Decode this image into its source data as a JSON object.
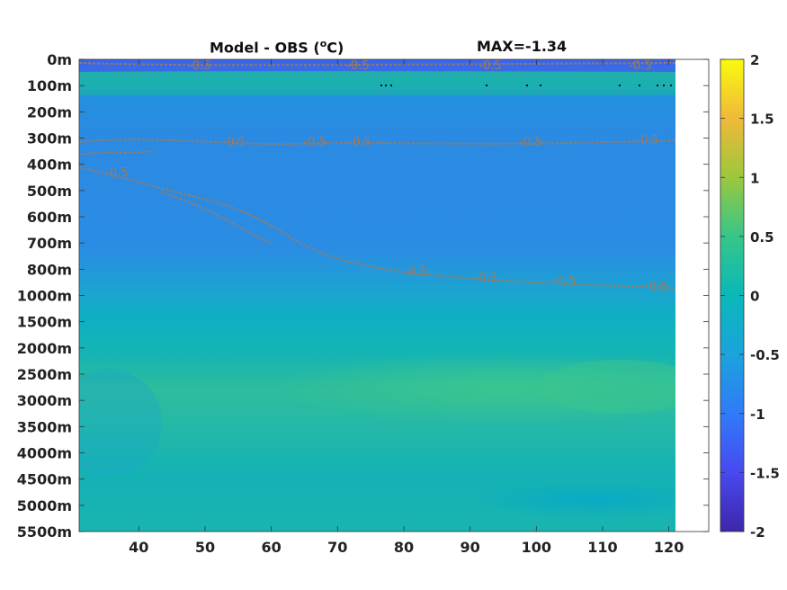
{
  "chart_data": {
    "type": "heatmap",
    "title_prefix": "Model - OBS (",
    "title_unit_sup": "o",
    "title_suffix": "C)",
    "max_label": "MAX=-1.34",
    "xlabel": "",
    "ylabel": "",
    "x_ticks": [
      40,
      50,
      60,
      70,
      80,
      90,
      100,
      110,
      120
    ],
    "xlim": [
      31,
      121
    ],
    "data_xlim": [
      31,
      121
    ],
    "y_ticks": [
      "0m",
      "100m",
      "200m",
      "300m",
      "400m",
      "500m",
      "600m",
      "700m",
      "800m",
      "1000m",
      "1500m",
      "2000m",
      "2500m",
      "3000m",
      "3500m",
      "4000m",
      "4500m",
      "5000m",
      "5500m"
    ],
    "colorbar": {
      "ticks": [
        2,
        1.5,
        1,
        0.5,
        0,
        -0.5,
        -1,
        -1.5,
        -2
      ],
      "tick_labels": [
        "2",
        "1.5",
        "1",
        "0.5",
        "0",
        "-0.5",
        "-1",
        "-1.5",
        "-2"
      ],
      "clim": [
        -2,
        2
      ],
      "colormap": "parula"
    },
    "contour_level": -0.5,
    "contour_label": "-0.5",
    "contour_color": "#a07a5a",
    "colors": {
      "surface": "#3a6ee8",
      "layer_100m": "#17b4a0",
      "layer_200m": "#1ea6bd",
      "upper_ocean": "#2c8ae0",
      "mid_ocean": "#0fadc5",
      "deep_warm": "#2fbe9a",
      "deep_base": "#12b0b5"
    }
  }
}
